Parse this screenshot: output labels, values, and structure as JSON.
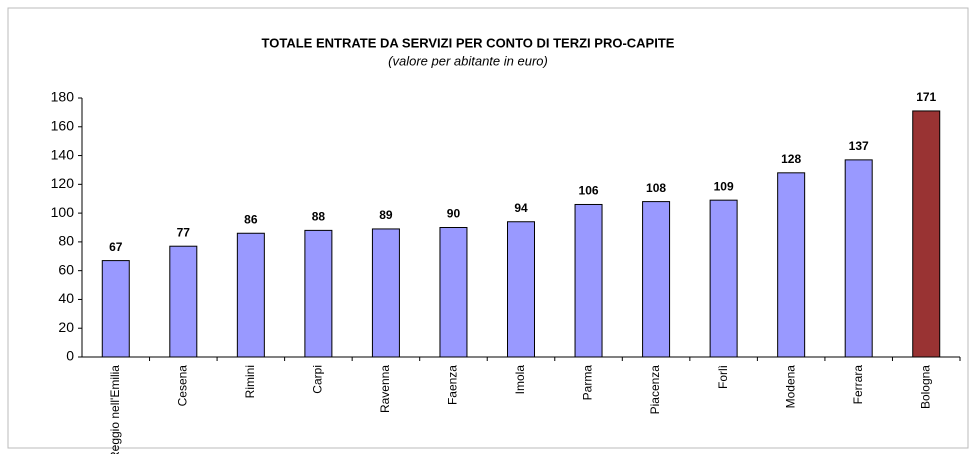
{
  "chart_data": {
    "type": "bar",
    "title": "TOTALE ENTRATE DA SERVIZI PER CONTO DI TERZI PRO-CAPITE",
    "subtitle": "(valore per abitante in euro)",
    "categories": [
      "Reggio nell'Emilia",
      "Cesena",
      "Rimini",
      "Carpi",
      "Ravenna",
      "Faenza",
      "Imola",
      "Parma",
      "Piacenza",
      "Forlì",
      "Modena",
      "Ferrara",
      "Bologna"
    ],
    "values": [
      67,
      77,
      86,
      88,
      89,
      90,
      94,
      106,
      108,
      109,
      128,
      137,
      171
    ],
    "colors": [
      "#9999ff",
      "#9999ff",
      "#9999ff",
      "#9999ff",
      "#9999ff",
      "#9999ff",
      "#9999ff",
      "#9999ff",
      "#9999ff",
      "#9999ff",
      "#9999ff",
      "#9999ff",
      "#993333"
    ],
    "ylim": [
      0,
      180
    ],
    "yticks": [
      0,
      20,
      40,
      60,
      80,
      100,
      120,
      140,
      160,
      180
    ],
    "grid": false
  }
}
